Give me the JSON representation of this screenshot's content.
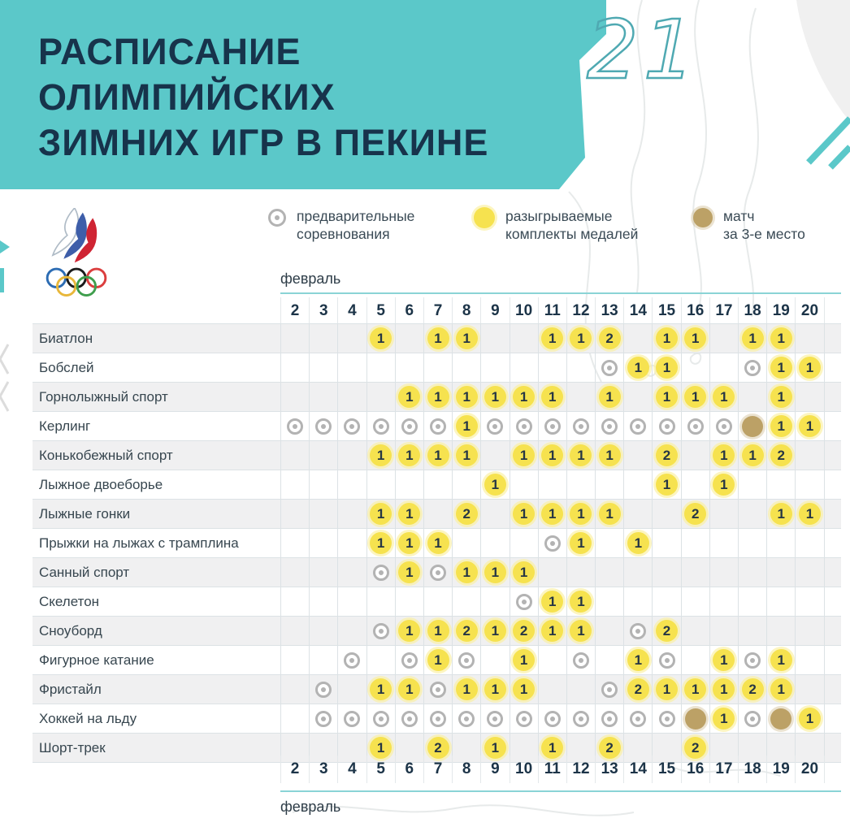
{
  "header": {
    "title_lines": [
      "РАСПИСАНИЕ",
      "ОЛИМПИЙСКИХ",
      "ЗИМНИХ ИГР В ПЕКИНЕ"
    ],
    "decor_number": "21",
    "banner_color": "#5BC8C9",
    "title_color": "#17334B"
  },
  "logo": {
    "name": "russian-olympic-committee-logo"
  },
  "legend": {
    "items": [
      {
        "type": "prelim",
        "icon": "target-icon",
        "label": "предварительные\nсоревнования"
      },
      {
        "type": "medal",
        "icon": "yellow-circle-icon",
        "label": "разыгрываемые\nкомплекты медалей"
      },
      {
        "type": "bronze",
        "icon": "bronze-circle-icon",
        "label": "матч\nза 3-е место"
      }
    ]
  },
  "colors": {
    "accent_teal": "#5BC8C9",
    "navy": "#17334B",
    "medal_yellow": "#F6E24F",
    "bronze": "#BCA166",
    "prelim_grey": "#B3B3B3",
    "grid_line": "#DCE2E5",
    "alt_row": "#F0F0F1"
  },
  "chart_data": {
    "type": "table",
    "title": "РАСПИСАНИЕ ОЛИМПИЙСКИХ ЗИМНИХ ИГР В ПЕКИНЕ",
    "month_label": "февраль",
    "dates": [
      2,
      3,
      4,
      5,
      6,
      7,
      8,
      9,
      10,
      11,
      12,
      13,
      14,
      15,
      16,
      17,
      18,
      19,
      20
    ],
    "cell_codes": {
      "P": "предварительные соревнования",
      "B": "матч за 3-е место",
      "numbers": "разыгрываемые комплекты медалей"
    },
    "rows": [
      {
        "name": "Биатлон",
        "cells": {
          "5": "1",
          "7": "1",
          "8": "1",
          "11": "1",
          "12": "1",
          "13": "2",
          "15": "1",
          "16": "1",
          "18": "1",
          "19": "1"
        }
      },
      {
        "name": "Бобслей",
        "cells": {
          "13": "P",
          "14": "1",
          "15": "1",
          "18": "P",
          "19": "1",
          "20": "1"
        }
      },
      {
        "name": "Горнолыжный спорт",
        "cells": {
          "6": "1",
          "7": "1",
          "8": "1",
          "9": "1",
          "10": "1",
          "11": "1",
          "13": "1",
          "15": "1",
          "16": "1",
          "17": "1",
          "19": "1"
        }
      },
      {
        "name": "Керлинг",
        "cells": {
          "2": "P",
          "3": "P",
          "4": "P",
          "5": "P",
          "6": "P",
          "7": "P",
          "8": "1",
          "9": "P",
          "10": "P",
          "11": "P",
          "12": "P",
          "13": "P",
          "14": "P",
          "15": "P",
          "16": "P",
          "17": "P",
          "18": "B",
          "19": "1",
          "20": "1"
        }
      },
      {
        "name": "Конькобежный спорт",
        "cells": {
          "5": "1",
          "6": "1",
          "7": "1",
          "8": "1",
          "10": "1",
          "11": "1",
          "12": "1",
          "13": "1",
          "15": "2",
          "17": "1",
          "18": "1",
          "19": "2"
        }
      },
      {
        "name": "Лыжное двоеборье",
        "cells": {
          "9": "1",
          "15": "1",
          "17": "1"
        }
      },
      {
        "name": "Лыжные гонки",
        "cells": {
          "5": "1",
          "6": "1",
          "8": "2",
          "10": "1",
          "11": "1",
          "12": "1",
          "13": "1",
          "16": "2",
          "19": "1",
          "20": "1"
        }
      },
      {
        "name": "Прыжки на лыжах с трамплина",
        "cells": {
          "5": "1",
          "6": "1",
          "7": "1",
          "11": "P",
          "12": "1",
          "14": "1"
        }
      },
      {
        "name": "Санный спорт",
        "cells": {
          "5": "P",
          "6": "1",
          "7": "P",
          "8": "1",
          "9": "1",
          "10": "1"
        }
      },
      {
        "name": "Скелетон",
        "cells": {
          "10": "P",
          "11": "1",
          "12": "1"
        }
      },
      {
        "name": "Сноуборд",
        "cells": {
          "5": "P",
          "6": "1",
          "7": "1",
          "8": "2",
          "9": "1",
          "10": "2",
          "11": "1",
          "12": "1",
          "14": "P",
          "15": "2"
        }
      },
      {
        "name": "Фигурное катание",
        "cells": {
          "4": "P",
          "6": "P",
          "7": "1",
          "8": "P",
          "10": "1",
          "12": "P",
          "14": "1",
          "15": "P",
          "17": "1",
          "18": "P",
          "19": "1"
        }
      },
      {
        "name": "Фристайл",
        "cells": {
          "3": "P",
          "5": "1",
          "6": "1",
          "7": "P",
          "8": "1",
          "9": "1",
          "10": "1",
          "13": "P",
          "14": "2",
          "15": "1",
          "16": "1",
          "17": "1",
          "18": "2",
          "19": "1"
        }
      },
      {
        "name": "Хоккей на льду",
        "cells": {
          "3": "P",
          "4": "P",
          "5": "P",
          "6": "P",
          "7": "P",
          "8": "P",
          "9": "P",
          "10": "P",
          "11": "P",
          "12": "P",
          "13": "P",
          "14": "P",
          "15": "P",
          "16": "B",
          "17": "1",
          "18": "P",
          "19": "B",
          "20": "1"
        }
      },
      {
        "name": "Шорт-трек",
        "cells": {
          "5": "1",
          "7": "2",
          "9": "1",
          "11": "1",
          "13": "2",
          "16": "2"
        }
      }
    ]
  }
}
